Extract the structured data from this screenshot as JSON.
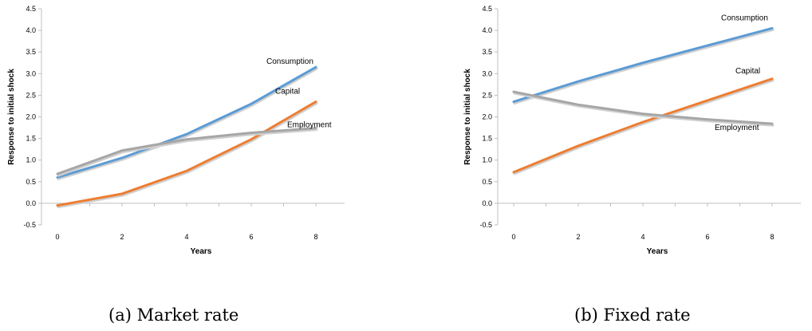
{
  "chart_data": [
    {
      "type": "line",
      "caption": "(a) Market rate",
      "xlabel": "Years",
      "ylabel": "Response to initial shock",
      "ylim": [
        -0.5,
        4.5
      ],
      "yticks": [
        "-0.5",
        "0.0",
        "0.5",
        "1.0",
        "1.5",
        "2.0",
        "2.5",
        "3.0",
        "3.5",
        "4.0",
        "4.5"
      ],
      "xticks": [
        "0",
        "2",
        "4",
        "6",
        "8"
      ],
      "x": [
        0,
        2,
        4,
        6,
        8
      ],
      "grid": false,
      "legend": "none (inline labels)",
      "series": [
        {
          "name": "Consumption",
          "color": "#5b9bd5",
          "values": [
            0.6,
            1.05,
            1.6,
            2.3,
            3.15
          ]
        },
        {
          "name": "Capital",
          "color": "#ed7d31",
          "values": [
            -0.05,
            0.22,
            0.75,
            1.48,
            2.35
          ]
        },
        {
          "name": "Employment",
          "color": "#a6a6a6",
          "values": [
            0.68,
            1.22,
            1.48,
            1.63,
            1.74
          ]
        }
      ]
    },
    {
      "type": "line",
      "caption": "(b) Fixed rate",
      "xlabel": "Years",
      "ylabel": "Response to initial shock",
      "ylim": [
        -0.5,
        4.5
      ],
      "yticks": [
        "-0.5",
        "0.0",
        "0.5",
        "1.0",
        "1.5",
        "2.0",
        "2.5",
        "3.0",
        "3.5",
        "4.0",
        "4.5"
      ],
      "xticks": [
        "0",
        "2",
        "4",
        "6",
        "8"
      ],
      "x": [
        0,
        2,
        4,
        6,
        8
      ],
      "grid": false,
      "legend": "none (inline labels)",
      "series": [
        {
          "name": "Consumption",
          "color": "#5b9bd5",
          "values": [
            2.35,
            2.82,
            3.25,
            3.65,
            4.05
          ]
        },
        {
          "name": "Capital",
          "color": "#ed7d31",
          "values": [
            0.72,
            1.33,
            1.88,
            2.38,
            2.88
          ]
        },
        {
          "name": "Employment",
          "color": "#a6a6a6",
          "values": [
            2.58,
            2.28,
            2.07,
            1.94,
            1.84
          ]
        }
      ]
    }
  ]
}
